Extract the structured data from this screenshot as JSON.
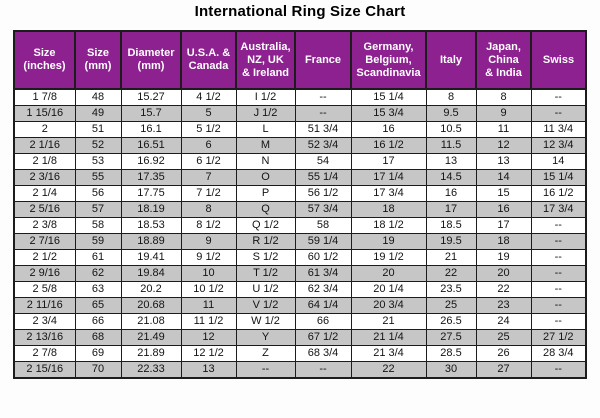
{
  "title": "International Ring Size Chart",
  "colors": {
    "header_bg": "#8d2190",
    "header_text": "#ffffff",
    "row_alt_bg": "#c6c6c6",
    "row_bg": "#ffffff",
    "border": "#1c1c1c",
    "text": "#141414"
  },
  "chart_data": {
    "type": "table",
    "title": "International Ring Size Chart",
    "columns": [
      "Size (inches)",
      "Size (mm)",
      "Diameter (mm)",
      "U.S.A. & Canada",
      "Australia, NZ, UK & Ireland",
      "France",
      "Germany, Belgium, Scandinavia",
      "Italy",
      "Japan, China & India",
      "Swiss"
    ],
    "header_display": [
      "Size\n(inches)",
      "Size\n(mm)",
      "Diameter\n(mm)",
      "U.S.A. &\nCanada",
      "Australia,\nNZ, UK\n& Ireland",
      "France",
      "Germany,\nBelgium,\nScandinavia",
      "Italy",
      "Japan,\nChina\n& India",
      "Swiss"
    ],
    "rows": [
      [
        "1 7/8",
        "48",
        "15.27",
        "4 1/2",
        "I 1/2",
        "--",
        "15 1/4",
        "8",
        "8",
        "--"
      ],
      [
        "1 15/16",
        "49",
        "15.7",
        "5",
        "J 1/2",
        "--",
        "15 3/4",
        "9.5",
        "9",
        "--"
      ],
      [
        "2",
        "51",
        "16.1",
        "5 1/2",
        "L",
        "51 3/4",
        "16",
        "10.5",
        "11",
        "11 3/4"
      ],
      [
        "2 1/16",
        "52",
        "16.51",
        "6",
        "M",
        "52 3/4",
        "16 1/2",
        "11.5",
        "12",
        "12 3/4"
      ],
      [
        "2 1/8",
        "53",
        "16.92",
        "6 1/2",
        "N",
        "54",
        "17",
        "13",
        "13",
        "14"
      ],
      [
        "2 3/16",
        "55",
        "17.35",
        "7",
        "O",
        "55 1/4",
        "17 1/4",
        "14.5",
        "14",
        "15 1/4"
      ],
      [
        "2 1/4",
        "56",
        "17.75",
        "7 1/2",
        "P",
        "56 1/2",
        "17 3/4",
        "16",
        "15",
        "16 1/2"
      ],
      [
        "2 5/16",
        "57",
        "18.19",
        "8",
        "Q",
        "57 3/4",
        "18",
        "17",
        "16",
        "17 3/4"
      ],
      [
        "2 3/8",
        "58",
        "18.53",
        "8 1/2",
        "Q 1/2",
        "58",
        "18 1/2",
        "18.5",
        "17",
        "--"
      ],
      [
        "2 7/16",
        "59",
        "18.89",
        "9",
        "R 1/2",
        "59 1/4",
        "19",
        "19.5",
        "18",
        "--"
      ],
      [
        "2 1/2",
        "61",
        "19.41",
        "9 1/2",
        "S 1/2",
        "60 1/2",
        "19 1/2",
        "21",
        "19",
        "--"
      ],
      [
        "2 9/16",
        "62",
        "19.84",
        "10",
        "T 1/2",
        "61 3/4",
        "20",
        "22",
        "20",
        "--"
      ],
      [
        "2 5/8",
        "63",
        "20.2",
        "10 1/2",
        "U 1/2",
        "62 3/4",
        "20 1/4",
        "23.5",
        "22",
        "--"
      ],
      [
        "2 11/16",
        "65",
        "20.68",
        "11",
        "V 1/2",
        "64 1/4",
        "20 3/4",
        "25",
        "23",
        "--"
      ],
      [
        "2 3/4",
        "66",
        "21.08",
        "11 1/2",
        "W 1/2",
        "66",
        "21",
        "26.5",
        "24",
        "--"
      ],
      [
        "2 13/16",
        "68",
        "21.49",
        "12",
        "Y",
        "67 1/2",
        "21 1/4",
        "27.5",
        "25",
        "27 1/2"
      ],
      [
        "2 7/8",
        "69",
        "21.89",
        "12 1/2",
        "Z",
        "68 3/4",
        "21 3/4",
        "28.5",
        "26",
        "28 3/4"
      ],
      [
        "2 15/16",
        "70",
        "22.33",
        "13",
        "--",
        "--",
        "22",
        "30",
        "27",
        "--"
      ]
    ]
  }
}
